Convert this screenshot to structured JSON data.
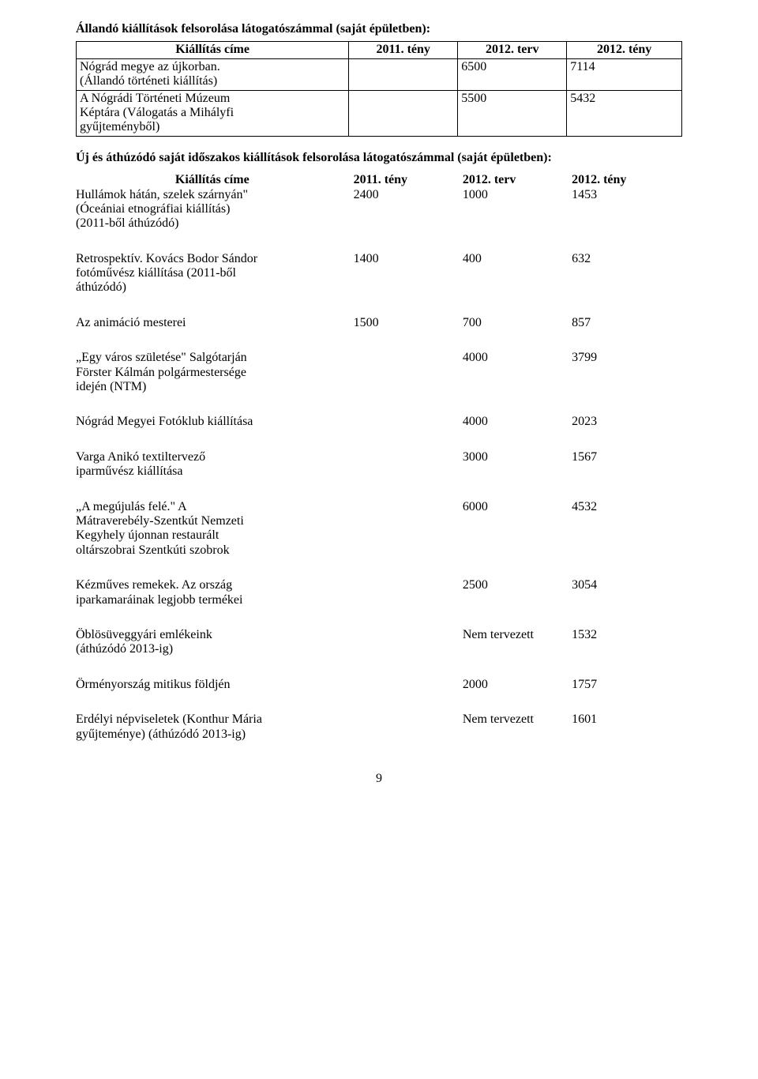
{
  "section1": {
    "heading": "Állandó kiállítások felsorolása látogatószámmal (saját épületben):",
    "table": {
      "header": {
        "title": "Kiállítás címe",
        "col_a": "2011. tény",
        "col_b": "2012. terv",
        "col_c": "2012. tény"
      },
      "rows": [
        {
          "title": "Nógrád megye az újkorban.\n(Állandó történeti kiállítás)",
          "a": "",
          "b": "6500",
          "c": "7114"
        },
        {
          "title": "A Nógrádi Történeti Múzeum\nKéptára (Válogatás a Mihályfi\ngyűjteményből)",
          "a": "",
          "b": "5500",
          "c": "5432"
        }
      ]
    }
  },
  "section2": {
    "heading": "Új és áthúzódó saját időszakos kiállítások felsorolása látogatószámmal (saját épületben):",
    "header": {
      "title": "Kiállítás címe",
      "col_a": "2011. tény",
      "col_b": "2012. terv",
      "col_c": "2012. tény"
    },
    "rows": [
      {
        "title": "Hullámok hátán, szelek szárnyán\"\n(Óceániai etnográfiai kiállítás)\n(2011-ből áthúzódó)",
        "a": "2400",
        "b": "1000",
        "c": "1453"
      },
      {
        "title": "Retrospektív. Kovács Bodor Sándor\nfotóművész kiállítása (2011-ből\náthúzódó)",
        "a": "1400",
        "b": "400",
        "c": "632"
      },
      {
        "title": "Az animáció mesterei",
        "a": "1500",
        "b": "700",
        "c": "857"
      },
      {
        "title": "„Egy város születése\" Salgótarján\nFörster Kálmán polgármestersége\nidején (NTM)",
        "a": "",
        "b": "4000",
        "c": "3799"
      },
      {
        "title": "Nógrád Megyei Fotóklub kiállítása",
        "a": "",
        "b": "4000",
        "c": "2023"
      },
      {
        "title": "Varga Anikó textiltervező\niparművész kiállítása",
        "a": "",
        "b": "3000",
        "c": "1567"
      },
      {
        "title": "„A megújulás felé.\" A\nMátraverebély-Szentkút Nemzeti\nKegyhely újonnan restaurált\noltárszobrai Szentkúti szobrok",
        "a": "",
        "b": "6000",
        "c": "4532"
      },
      {
        "title": "Kézműves remekek. Az ország\niparkamaráinak legjobb termékei",
        "a": "",
        "b": "2500",
        "c": "3054"
      },
      {
        "title": "Öblösüveggyári emlékeink\n(áthúzódó 2013-ig)",
        "a": "",
        "b": "Nem tervezett",
        "c": "1532"
      },
      {
        "title": "Örményország mitikus földjén",
        "a": "",
        "b": "2000",
        "c": "1757"
      },
      {
        "title": "Erdélyi népviseletek (Konthur Mária\ngyűjteménye) (áthúzódó 2013-ig)",
        "a": "",
        "b": "Nem tervezett",
        "c": "1601"
      }
    ]
  },
  "page_number": "9"
}
